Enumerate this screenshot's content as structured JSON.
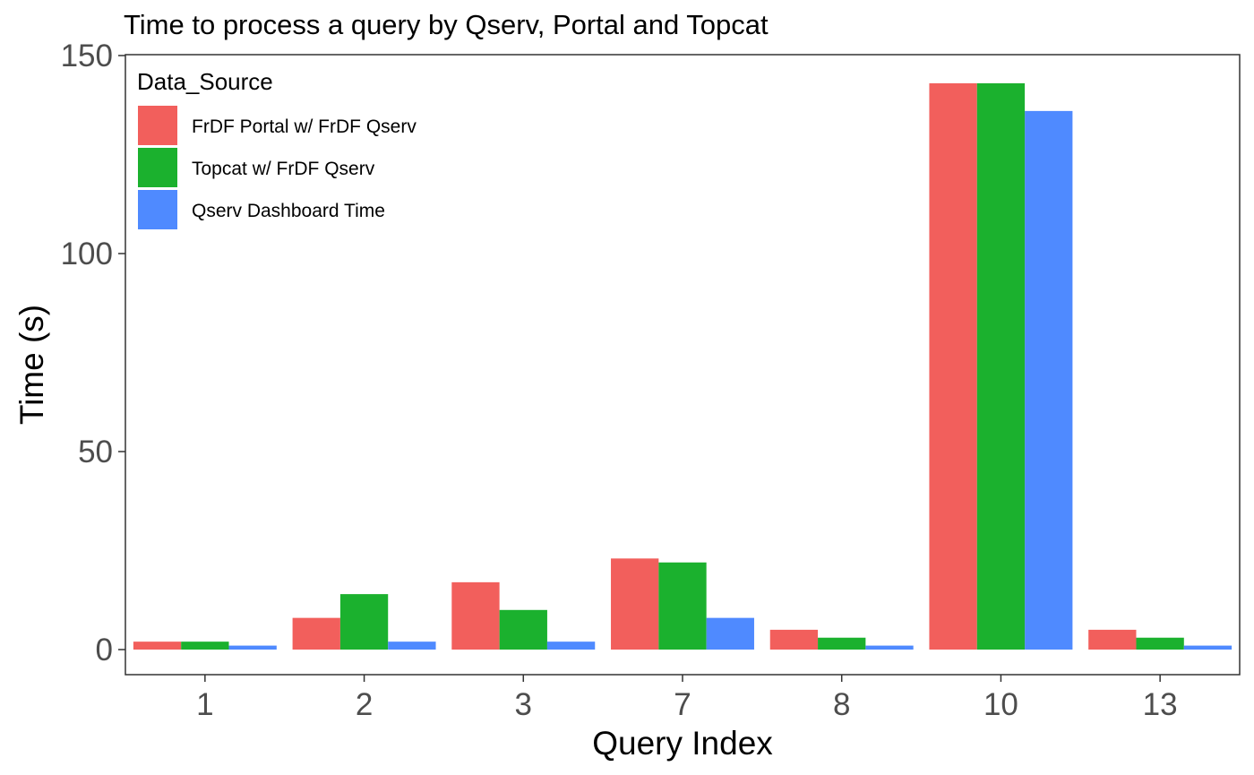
{
  "chart_data": {
    "type": "bar",
    "title": "Time to process a query by Qserv, Portal and Topcat",
    "xlabel": "Query Index",
    "ylabel": "Time (s)",
    "categories": [
      "1",
      "2",
      "3",
      "7",
      "8",
      "10",
      "13"
    ],
    "ylim": [
      0,
      150
    ],
    "yticks": [
      0,
      50,
      100,
      150
    ],
    "grid": false,
    "legend": {
      "title": "Data_Source",
      "position": "top-left"
    },
    "series": [
      {
        "name": "FrDF Portal w/ FrDF Qserv",
        "color": "#F25F5C",
        "values": [
          2,
          8,
          17,
          23,
          5,
          143,
          5
        ]
      },
      {
        "name": "Topcat w/ FrDF Qserv",
        "color": "#1BB12E",
        "values": [
          2,
          14,
          10,
          22,
          3,
          143,
          3
        ]
      },
      {
        "name": "Qserv Dashboard Time",
        "color": "#4F8AFF",
        "values": [
          1,
          2,
          2,
          8,
          1,
          136,
          1
        ]
      }
    ]
  }
}
